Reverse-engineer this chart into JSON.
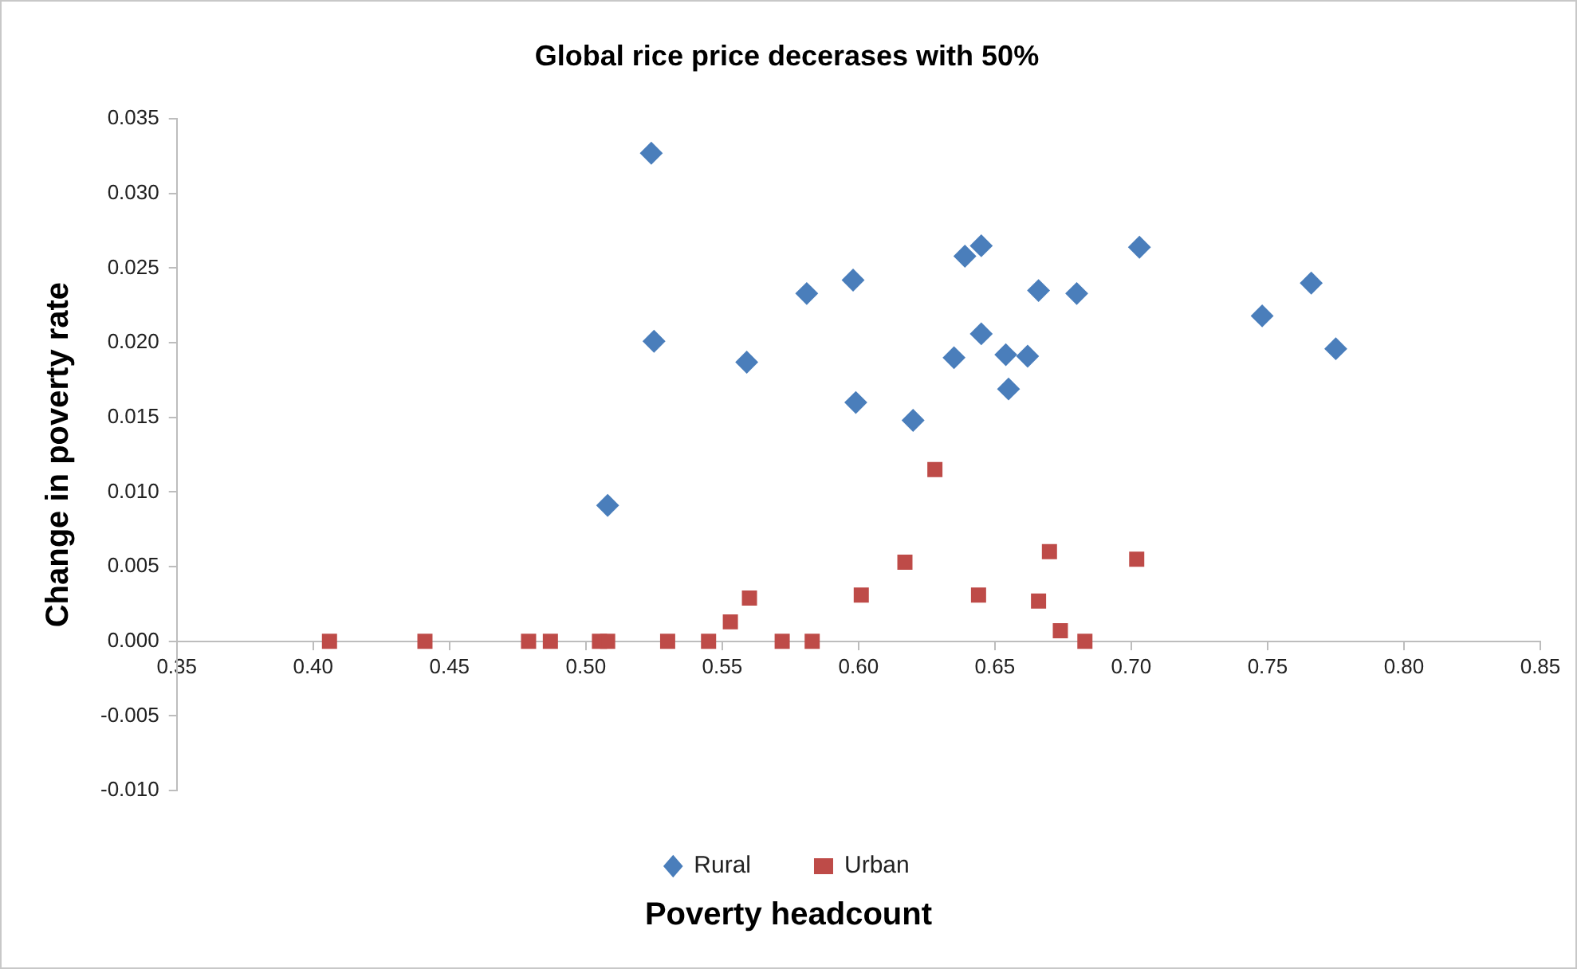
{
  "chart_data": {
    "type": "scatter",
    "title": "Global rice price decerases with 50%",
    "xlabel": "Poverty headcount",
    "ylabel": "Change in poverty rate",
    "xlim": [
      0.35,
      0.85
    ],
    "ylim": [
      -0.01,
      0.035
    ],
    "xticks": [
      {
        "value": 0.35,
        "label": "0.35"
      },
      {
        "value": 0.4,
        "label": "0.40"
      },
      {
        "value": 0.45,
        "label": "0.45"
      },
      {
        "value": 0.5,
        "label": "0.50"
      },
      {
        "value": 0.55,
        "label": "0.55"
      },
      {
        "value": 0.6,
        "label": "0.60"
      },
      {
        "value": 0.65,
        "label": "0.65"
      },
      {
        "value": 0.7,
        "label": "0.70"
      },
      {
        "value": 0.75,
        "label": "0.75"
      },
      {
        "value": 0.8,
        "label": "0.80"
      },
      {
        "value": 0.85,
        "label": "0.85"
      }
    ],
    "yticks": [
      {
        "value": -0.01,
        "label": "-0.010"
      },
      {
        "value": -0.005,
        "label": "-0.005"
      },
      {
        "value": 0,
        "label": "0.000"
      },
      {
        "value": 0.005,
        "label": "0.005"
      },
      {
        "value": 0.01,
        "label": "0.010"
      },
      {
        "value": 0.015,
        "label": "0.015"
      },
      {
        "value": 0.02,
        "label": "0.020"
      },
      {
        "value": 0.025,
        "label": "0.025"
      },
      {
        "value": 0.03,
        "label": "0.030"
      },
      {
        "value": 0.035,
        "label": "0.035"
      }
    ],
    "legend": "bottom",
    "series": [
      {
        "name": "Rural",
        "color": "#4a7ebb",
        "marker": "diamond",
        "x": [
          0.524,
          0.525,
          0.508,
          0.559,
          0.581,
          0.598,
          0.599,
          0.62,
          0.635,
          0.639,
          0.645,
          0.645,
          0.654,
          0.655,
          0.662,
          0.666,
          0.68,
          0.703,
          0.748,
          0.766,
          0.775
        ],
        "values": [
          0.0327,
          0.0201,
          0.0091,
          0.0187,
          0.0233,
          0.0242,
          0.016,
          0.0148,
          0.019,
          0.0258,
          0.0265,
          0.0206,
          0.0192,
          0.0169,
          0.0191,
          0.0235,
          0.0233,
          0.0264,
          0.0218,
          0.024,
          0.0196
        ]
      },
      {
        "name": "Urban",
        "color": "#be4b48",
        "marker": "square",
        "x": [
          0.406,
          0.441,
          0.479,
          0.487,
          0.505,
          0.508,
          0.53,
          0.545,
          0.553,
          0.56,
          0.572,
          0.583,
          0.601,
          0.617,
          0.628,
          0.644,
          0.666,
          0.67,
          0.674,
          0.683,
          0.702
        ],
        "values": [
          0,
          0,
          0,
          0,
          0,
          0,
          0,
          0,
          0.0013,
          0.0029,
          0,
          0,
          0.0031,
          0.0053,
          0.0115,
          0.0031,
          0.0027,
          0.006,
          0.0007,
          0,
          0.0055
        ]
      }
    ]
  }
}
